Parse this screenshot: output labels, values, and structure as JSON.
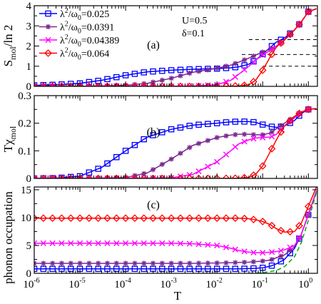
{
  "chart_data": [
    {
      "type": "line",
      "panel_label": "(a)",
      "ylabel": "S_mol/ln 2",
      "ylim": [
        0,
        4
      ],
      "yticks": [
        "0",
        "1",
        "2",
        "3",
        "4"
      ],
      "xscale": "log",
      "xlim": [
        1e-06,
        1.58
      ],
      "annotations": [
        "U=0.5",
        "δ=0.1"
      ],
      "reference_lines_y": [
        1.0,
        1.58,
        2.32
      ],
      "legend_position": "top-left",
      "series": [
        {
          "name": "λ²/ω₀=0.025",
          "color": "#0000ff",
          "marker": "square",
          "x": [
            1e-06,
            3e-06,
            1e-05,
            3e-05,
            0.0001,
            0.0003,
            0.001,
            0.003,
            0.01,
            0.02,
            0.03,
            0.05,
            0.07,
            0.1,
            0.15,
            0.2,
            0.3,
            0.5,
            0.7,
            1.0,
            1.5
          ],
          "y": [
            0.05,
            0.08,
            0.15,
            0.3,
            0.55,
            0.72,
            0.8,
            0.85,
            0.88,
            0.92,
            0.97,
            1.1,
            1.3,
            1.6,
            1.95,
            2.2,
            2.4,
            2.8,
            3.2,
            3.7,
            3.85
          ]
        },
        {
          "name": "λ²/ω₀=0.0391",
          "color": "#7a2a8f",
          "marker": "star",
          "x": [
            1e-06,
            1e-05,
            0.0001,
            0.0003,
            0.001,
            0.003,
            0.01,
            0.02,
            0.03,
            0.05,
            0.07,
            0.1,
            0.15,
            0.2,
            0.3,
            0.5,
            0.7,
            1.0,
            1.5
          ],
          "y": [
            0.0,
            0.0,
            0.05,
            0.15,
            0.4,
            0.7,
            0.9,
            1.05,
            1.2,
            1.4,
            1.55,
            1.7,
            1.85,
            2.0,
            2.3,
            2.8,
            3.2,
            3.7,
            3.85
          ]
        },
        {
          "name": "λ²/ω₀=0.04389",
          "color": "#ff00ff",
          "marker": "x",
          "x": [
            1e-06,
            1e-05,
            0.0001,
            0.001,
            0.003,
            0.01,
            0.02,
            0.03,
            0.05,
            0.07,
            0.1,
            0.15,
            0.2,
            0.3,
            0.5,
            0.7,
            1.0,
            1.5
          ],
          "y": [
            0.0,
            0.0,
            0.0,
            0.0,
            0.02,
            0.08,
            0.3,
            0.6,
            1.0,
            1.3,
            1.55,
            1.8,
            2.0,
            2.3,
            2.8,
            3.2,
            3.7,
            3.85
          ]
        },
        {
          "name": "λ²/ω₀=0.064",
          "color": "#ff0000",
          "marker": "diamond",
          "x": [
            1e-06,
            1e-05,
            0.0001,
            0.001,
            0.01,
            0.03,
            0.05,
            0.07,
            0.1,
            0.15,
            0.2,
            0.3,
            0.5,
            0.7,
            1.0,
            1.5
          ],
          "y": [
            0.0,
            0.0,
            0.0,
            0.0,
            0.0,
            0.02,
            0.08,
            0.3,
            0.8,
            1.5,
            1.95,
            2.3,
            2.8,
            3.2,
            3.7,
            3.85
          ]
        }
      ]
    },
    {
      "type": "line",
      "panel_label": "(b)",
      "ylabel": "Tχ_mol",
      "ylim": [
        0,
        0.3
      ],
      "yticks": [
        "0",
        "0.1",
        "0.2",
        "0.3"
      ],
      "xscale": "log",
      "xlim": [
        1e-06,
        1.58
      ],
      "series": [
        {
          "name": "λ²/ω₀=0.025",
          "color": "#0000ff",
          "marker": "square",
          "x": [
            1e-06,
            3e-06,
            1e-05,
            3e-05,
            0.0001,
            0.0003,
            0.001,
            0.003,
            0.01,
            0.02,
            0.03,
            0.05,
            0.07,
            0.1,
            0.15,
            0.2,
            0.3,
            0.5,
            0.7,
            1.0,
            1.5
          ],
          "y": [
            0.0,
            0.001,
            0.008,
            0.04,
            0.1,
            0.15,
            0.178,
            0.193,
            0.2,
            0.205,
            0.206,
            0.206,
            0.203,
            0.195,
            0.188,
            0.185,
            0.19,
            0.21,
            0.235,
            0.25,
            0.253
          ]
        },
        {
          "name": "λ²/ω₀=0.0391",
          "color": "#7a2a8f",
          "marker": "star",
          "x": [
            1e-06,
            1e-05,
            0.0001,
            0.0003,
            0.001,
            0.003,
            0.01,
            0.02,
            0.03,
            0.05,
            0.07,
            0.1,
            0.15,
            0.2,
            0.3,
            0.5,
            0.7,
            1.0,
            1.5
          ],
          "y": [
            0.0,
            0.0,
            0.003,
            0.02,
            0.07,
            0.12,
            0.148,
            0.157,
            0.16,
            0.16,
            0.158,
            0.158,
            0.165,
            0.18,
            0.2,
            0.225,
            0.24,
            0.25,
            0.253
          ]
        },
        {
          "name": "λ²/ω₀=0.04389",
          "color": "#ff00ff",
          "marker": "x",
          "x": [
            1e-06,
            1e-05,
            0.0001,
            0.001,
            0.003,
            0.01,
            0.02,
            0.03,
            0.05,
            0.07,
            0.1,
            0.15,
            0.2,
            0.3,
            0.5,
            0.7,
            1.0,
            1.5
          ],
          "y": [
            0.0,
            0.0,
            0.0,
            0.002,
            0.015,
            0.06,
            0.1,
            0.125,
            0.14,
            0.146,
            0.148,
            0.15,
            0.16,
            0.19,
            0.22,
            0.24,
            0.25,
            0.253
          ]
        },
        {
          "name": "λ²/ω₀=0.064",
          "color": "#ff0000",
          "marker": "diamond",
          "x": [
            1e-06,
            1e-05,
            0.0001,
            0.001,
            0.01,
            0.03,
            0.05,
            0.07,
            0.1,
            0.15,
            0.2,
            0.3,
            0.5,
            0.7,
            1.0,
            1.5
          ],
          "y": [
            0.0,
            0.0,
            0.0,
            0.0,
            0.0,
            0.001,
            0.004,
            0.015,
            0.045,
            0.1,
            0.14,
            0.19,
            0.225,
            0.24,
            0.25,
            0.253
          ]
        }
      ]
    },
    {
      "type": "line",
      "panel_label": "(c)",
      "ylabel": "phonon occupation",
      "ylim": [
        0,
        15.5
      ],
      "yticks": [
        "0",
        "5",
        "10",
        "15"
      ],
      "xscale": "log",
      "xlim": [
        1e-06,
        1.58
      ],
      "xlabel": "T",
      "xticks": [
        {
          "base": "10",
          "exp": "-6"
        },
        {
          "base": "10",
          "exp": "-5"
        },
        {
          "base": "10",
          "exp": "-4"
        },
        {
          "base": "10",
          "exp": "-3"
        },
        {
          "base": "10",
          "exp": "-2"
        },
        {
          "base": "10",
          "exp": "-1"
        },
        {
          "base": "10",
          "exp": "0"
        }
      ],
      "series": [
        {
          "name": "λ²/ω₀=0.025",
          "color": "#0000ff",
          "marker": "square",
          "x": [
            1e-06,
            3e-06,
            1e-05,
            3e-05,
            0.0001,
            0.0003,
            0.001,
            0.003,
            0.01,
            0.02,
            0.03,
            0.05,
            0.07,
            0.1,
            0.15,
            0.2,
            0.3,
            0.5,
            0.7,
            1.0,
            1.5
          ],
          "y": [
            0.8,
            0.8,
            0.8,
            0.8,
            0.8,
            0.8,
            0.8,
            0.8,
            0.8,
            0.8,
            0.8,
            0.85,
            0.9,
            1.0,
            1.3,
            1.7,
            2.5,
            4.5,
            7.0,
            10.5,
            14.8
          ]
        },
        {
          "name": "λ²/ω₀=0.0391",
          "color": "#7a2a8f",
          "marker": "star",
          "x": [
            1e-06,
            1e-05,
            0.0001,
            0.0003,
            0.001,
            0.003,
            0.01,
            0.02,
            0.03,
            0.05,
            0.07,
            0.1,
            0.15,
            0.2,
            0.3,
            0.5,
            0.7,
            1.0,
            1.5
          ],
          "y": [
            1.8,
            1.8,
            1.8,
            1.8,
            1.8,
            1.8,
            1.85,
            1.9,
            1.95,
            2.0,
            2.1,
            2.2,
            2.4,
            2.8,
            3.3,
            4.8,
            7.0,
            10.5,
            14.8
          ]
        },
        {
          "name": "λ²/ω₀=0.04389",
          "color": "#ff00ff",
          "marker": "x",
          "x": [
            1e-06,
            1e-05,
            0.0001,
            0.001,
            0.003,
            0.01,
            0.02,
            0.03,
            0.05,
            0.07,
            0.1,
            0.15,
            0.2,
            0.3,
            0.5,
            0.7,
            1.0,
            1.5
          ],
          "y": [
            5.4,
            5.4,
            5.4,
            5.4,
            5.3,
            5.0,
            4.5,
            4.1,
            3.8,
            3.7,
            3.7,
            3.8,
            3.9,
            4.2,
            5.0,
            7.0,
            10.5,
            14.8
          ]
        },
        {
          "name": "λ²/ω₀=0.064",
          "color": "#ff0000",
          "marker": "diamond",
          "x": [
            1e-06,
            1e-05,
            0.0001,
            0.001,
            0.01,
            0.03,
            0.05,
            0.07,
            0.1,
            0.15,
            0.2,
            0.3,
            0.5,
            0.7,
            1.0,
            1.5
          ],
          "y": [
            9.9,
            9.9,
            9.9,
            9.9,
            9.9,
            9.9,
            9.8,
            9.6,
            9.3,
            8.7,
            8.0,
            7.4,
            7.5,
            9.0,
            12.0,
            15.5
          ]
        },
        {
          "name": "",
          "color": "#00aa00",
          "marker": "none",
          "dashed": true,
          "x": [
            0.05,
            0.1,
            0.2,
            0.3,
            0.5,
            0.7,
            1.0,
            1.5
          ],
          "y": [
            0.0,
            0.1,
            0.5,
            1.2,
            3.0,
            5.5,
            9.5,
            14.5
          ]
        }
      ]
    }
  ]
}
